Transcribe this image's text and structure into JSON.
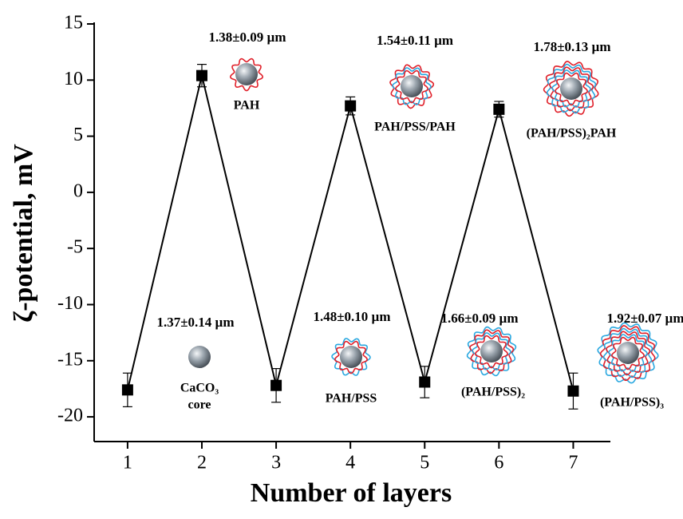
{
  "chart_data": {
    "type": "line",
    "x": [
      1,
      2,
      3,
      4,
      5,
      6,
      7
    ],
    "xlabel": "Number of layers",
    "ylabel": "ζ-potential, mV",
    "series": [
      {
        "color": "#000000",
        "values": [
          -17.6,
          10.4,
          -17.2,
          7.7,
          -16.9,
          7.4,
          -17.7
        ],
        "errors": [
          1.5,
          1.0,
          1.5,
          0.8,
          1.4,
          0.7,
          1.6
        ]
      }
    ],
    "xlim": [
      0.55,
      7.5
    ],
    "xticks": [
      1,
      2,
      3,
      4,
      5,
      6,
      7
    ],
    "ylim": [
      -22.2,
      15
    ],
    "yticks": [
      -20,
      -15,
      -10,
      -5,
      0,
      5,
      10,
      15
    ],
    "annotations": [
      {
        "size": "1.37±0.14 µm",
        "label": [
          "CaCO₃",
          "core"
        ]
      },
      {
        "size": "1.38±0.09 µm",
        "label": [
          "PAH"
        ]
      },
      {
        "size": "1.48±0.10 µm",
        "label": [
          "PAH/PSS"
        ]
      },
      {
        "size": "1.54±0.11 µm",
        "label": [
          "PAH/PSS/PAH"
        ]
      },
      {
        "size": "1.66±0.09 µm",
        "label": [
          "(PAH/PSS)₂"
        ]
      },
      {
        "size": "1.78±0.13 µm",
        "label": [
          "(PAH/PSS)₂PAH"
        ]
      },
      {
        "size": "1.92±0.07 µm",
        "label": [
          "(PAH/PSS)₃"
        ]
      }
    ]
  }
}
